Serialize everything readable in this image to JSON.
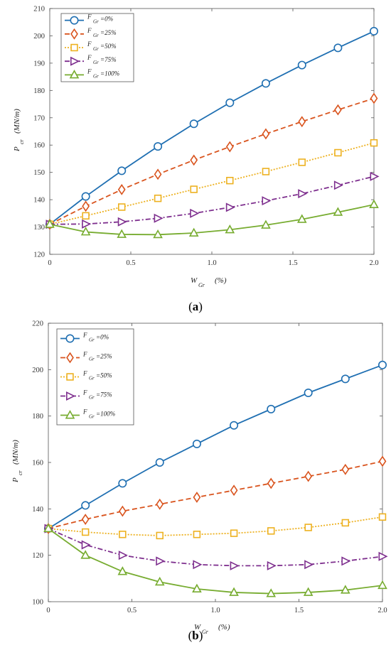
{
  "charts": [
    {
      "caption": {
        "open": "(",
        "letter": "a",
        "close": ")"
      },
      "ylabel": {
        "main": "P",
        "sub": "cr",
        "unit": "(MN/m)"
      },
      "xlabel": {
        "main": "W",
        "sub": "Gr",
        "unit": "(%)"
      },
      "yticks": [
        "120",
        "130",
        "140",
        "150",
        "160",
        "170",
        "180",
        "190",
        "200",
        "210"
      ],
      "xticks": [
        "0",
        "0.5",
        "1.0",
        "1.5",
        "2.0"
      ]
    },
    {
      "caption": {
        "open": "(",
        "letter": "b",
        "close": ")"
      },
      "ylabel": {
        "main": "P",
        "sub": "cr",
        "unit": "(MN/m)"
      },
      "xlabel": {
        "main": "W",
        "sub": "Gr",
        "unit": "(%)"
      },
      "yticks": [
        "100",
        "120",
        "140",
        "160",
        "180",
        "200",
        "220"
      ],
      "xticks": [
        "0",
        "0.5",
        "1.0",
        "1.5",
        "2.0"
      ]
    }
  ],
  "legend_items": [
    {
      "main": "F",
      "sub": "Gr",
      "value": "=0%"
    },
    {
      "main": "F",
      "sub": "Gr",
      "value": "=25%"
    },
    {
      "main": "F",
      "sub": "Gr",
      "value": "=50%"
    },
    {
      "main": "F",
      "sub": "Gr",
      "value": "=75%"
    },
    {
      "main": "F",
      "sub": "Gr",
      "value": "=100%"
    }
  ],
  "series_styles": [
    {
      "color": "#1f6fb2",
      "marker": "circle",
      "dash": ""
    },
    {
      "color": "#d9541e",
      "marker": "diamond",
      "dash": "7,4"
    },
    {
      "color": "#edb120",
      "marker": "square",
      "dash": "2,2"
    },
    {
      "color": "#7e2f8e",
      "marker": "triangle-right",
      "dash": "7,3,2,3"
    },
    {
      "color": "#77ac30",
      "marker": "triangle-up",
      "dash": ""
    }
  ],
  "chart_data": [
    {
      "type": "line",
      "xlabel": "W Gr (%)",
      "ylabel": "P cr (MN/m)",
      "xlim": [
        0,
        2.0
      ],
      "ylim": [
        120,
        210
      ],
      "grid": false,
      "legend_position": "top-left",
      "x": [
        0,
        0.222,
        0.444,
        0.667,
        0.889,
        1.111,
        1.333,
        1.556,
        1.778,
        2.0
      ],
      "series": [
        {
          "name": "F Gr =0%",
          "values": [
            131,
            141.2,
            150.6,
            159.5,
            167.8,
            175.5,
            182.6,
            189.3,
            195.6,
            201.7
          ]
        },
        {
          "name": "F Gr =25%",
          "values": [
            131,
            137.6,
            143.7,
            149.3,
            154.5,
            159.4,
            164.1,
            168.6,
            172.9,
            177.1
          ]
        },
        {
          "name": "F Gr =50%",
          "values": [
            131,
            134.1,
            137.3,
            140.5,
            143.8,
            147.0,
            150.3,
            153.7,
            157.2,
            160.8
          ]
        },
        {
          "name": "F Gr =75%",
          "values": [
            131,
            131.1,
            131.9,
            133.2,
            135.0,
            137.2,
            139.6,
            142.2,
            145.3,
            148.5
          ]
        },
        {
          "name": "F Gr =100%",
          "values": [
            131,
            128.2,
            127.3,
            127.2,
            127.8,
            129.0,
            130.7,
            132.8,
            135.4,
            138.2
          ]
        }
      ]
    },
    {
      "type": "line",
      "xlabel": "W Gr (%)",
      "ylabel": "P cr (MN/m)",
      "xlim": [
        0,
        2.0
      ],
      "ylim": [
        100,
        220
      ],
      "grid": false,
      "legend_position": "top-left",
      "x": [
        0,
        0.222,
        0.444,
        0.667,
        0.889,
        1.111,
        1.333,
        1.556,
        1.778,
        2.0
      ],
      "series": [
        {
          "name": "F Gr =0%",
          "values": [
            131.5,
            141.5,
            151.0,
            160.0,
            168.0,
            176.0,
            183.0,
            190.0,
            196.0,
            202.0
          ]
        },
        {
          "name": "F Gr =25%",
          "values": [
            131.5,
            135.5,
            139.0,
            142.0,
            145.0,
            148.0,
            151.0,
            154.0,
            157.0,
            160.5
          ]
        },
        {
          "name": "F Gr =50%",
          "values": [
            131.5,
            130.0,
            129.0,
            128.5,
            129.0,
            129.5,
            130.5,
            132.0,
            134.0,
            136.5
          ]
        },
        {
          "name": "F Gr =75%",
          "values": [
            131.5,
            124.5,
            120.0,
            117.5,
            116.0,
            115.5,
            115.5,
            116.0,
            117.5,
            119.5
          ]
        },
        {
          "name": "F Gr =100%",
          "values": [
            131.5,
            120.0,
            113.0,
            108.5,
            105.5,
            104.0,
            103.5,
            104.0,
            105.0,
            107.0
          ]
        }
      ]
    }
  ]
}
